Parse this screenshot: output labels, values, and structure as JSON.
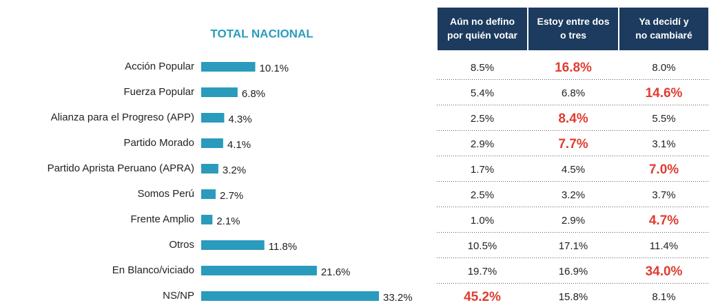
{
  "chart_data": {
    "type": "bar",
    "orientation": "horizontal",
    "title": "TOTAL NACIONAL",
    "categories": [
      "Acción Popular",
      "Fuerza Popular",
      "Alianza para el Progreso (APP)",
      "Partido Morado",
      "Partido Aprista Peruano (APRA)",
      "Somos Perú",
      "Frente Amplio",
      "Otros",
      "En Blanco/viciado",
      "NS/NP"
    ],
    "values": [
      10.1,
      6.8,
      4.3,
      4.1,
      3.2,
      2.7,
      2.1,
      11.8,
      21.6,
      33.2
    ],
    "value_labels": [
      "10.1%",
      "6.8%",
      "4.3%",
      "4.1%",
      "3.2%",
      "2.7%",
      "2.1%",
      "11.8%",
      "21.6%",
      "33.2%"
    ],
    "color": "#2a9bbd"
  },
  "table": {
    "header": [
      "Aún no defino por quién votar",
      "Estoy entre dos o tres",
      "Ya decidí y no cambiaré"
    ],
    "rows": [
      [
        "8.5%",
        "16.8%",
        "8.0%"
      ],
      [
        "5.4%",
        "6.8%",
        "14.6%"
      ],
      [
        "2.5%",
        "8.4%",
        "5.5%"
      ],
      [
        "2.9%",
        "7.7%",
        "3.1%"
      ],
      [
        "1.7%",
        "4.5%",
        "7.0%"
      ],
      [
        "2.5%",
        "3.2%",
        "3.7%"
      ],
      [
        "1.0%",
        "2.9%",
        "4.7%"
      ],
      [
        "10.5%",
        "17.1%",
        "11.4%"
      ],
      [
        "19.7%",
        "16.9%",
        "34.0%"
      ],
      [
        "45.2%",
        "15.8%",
        "8.1%"
      ]
    ],
    "highlight": [
      1,
      2,
      1,
      1,
      2,
      null,
      2,
      null,
      2,
      0
    ],
    "header_color": "#1c3b5e",
    "highlight_color": "#e03c31"
  }
}
